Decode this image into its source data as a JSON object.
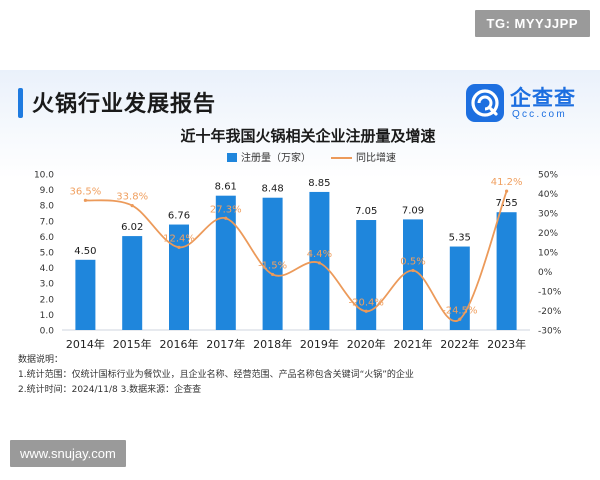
{
  "watermark_top": "TG: MYYJJPP",
  "watermark_bottom": "www.snujay.com",
  "report_title": "火锅行业发展报告",
  "logo": {
    "name": "企查查",
    "sub": "Qcc.com"
  },
  "chart_data": {
    "type": "bar+line",
    "title": "近十年我国火锅相关企业注册量及增速",
    "legend": [
      "注册量（万家）",
      "同比增速"
    ],
    "categories": [
      "2014年",
      "2015年",
      "2016年",
      "2017年",
      "2018年",
      "2019年",
      "2020年",
      "2021年",
      "2022年",
      "2023年"
    ],
    "series": [
      {
        "name": "注册量（万家）",
        "axis": "left",
        "values": [
          4.5,
          6.02,
          6.76,
          8.61,
          8.48,
          8.85,
          7.05,
          7.09,
          5.35,
          7.55
        ],
        "labels": [
          "4.50",
          "6.02",
          "6.76",
          "8.61",
          "8.48",
          "8.85",
          "7.05",
          "7.09",
          "5.35",
          "7.55"
        ]
      },
      {
        "name": "同比增速",
        "axis": "right",
        "values": [
          36.5,
          33.8,
          12.4,
          27.3,
          -1.5,
          4.4,
          -20.4,
          0.5,
          -24.5,
          41.2
        ],
        "labels": [
          "36.5%",
          "33.8%",
          "12.4%",
          "27.3%",
          "-1.5%",
          "4.4%",
          "-20.4%",
          "0.5%",
          "-24.5%",
          "41.2%"
        ]
      }
    ],
    "y_left": {
      "min": 0,
      "max": 10,
      "ticks": [
        "0.0",
        "1.0",
        "2.0",
        "3.0",
        "4.0",
        "5.0",
        "6.0",
        "7.0",
        "8.0",
        "9.0",
        "10.0"
      ]
    },
    "y_right": {
      "min": -30,
      "max": 50,
      "ticks": [
        "-30%",
        "-20%",
        "-10%",
        "0%",
        "10%",
        "20%",
        "30%",
        "40%",
        "50%"
      ]
    },
    "colors": {
      "bar": "#1f86dc",
      "line": "#ec9a5a",
      "line_label": "#f0a060",
      "bar_label": "#1a1a1a"
    }
  },
  "notes": {
    "heading": "数据说明：",
    "line1": "1.统计范围：仅统计国标行业为餐饮业，且企业名称、经营范围、产品名称包含关键词“火锅”的企业",
    "line2": "2.统计时间：2024/11/8      3.数据来源：企查查"
  }
}
